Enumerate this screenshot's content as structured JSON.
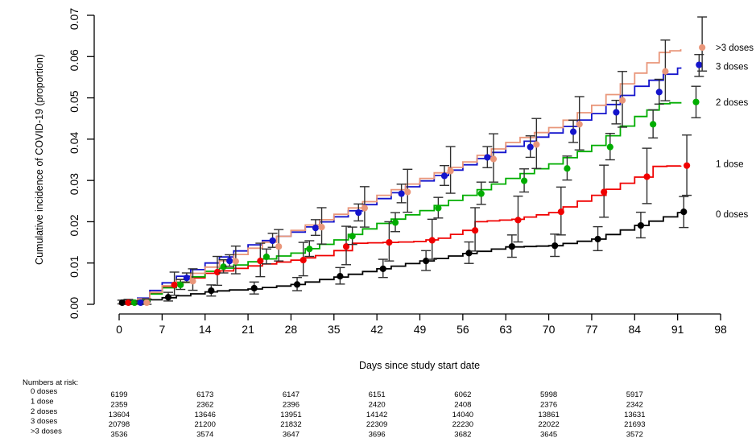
{
  "chart_data": {
    "type": "line",
    "subtype": "kaplan-meier-step-curves-with-weekly-point-estimates",
    "title": "",
    "xlabel": "Days since study start date",
    "ylabel": "Cumulative incidence of COVID-19 (proportion)",
    "xlim": [
      0,
      98
    ],
    "ylim": [
      0,
      0.07
    ],
    "xticks": [
      0,
      7,
      14,
      21,
      28,
      35,
      42,
      49,
      56,
      63,
      70,
      77,
      84,
      91,
      98
    ],
    "yticks": [
      "0.00",
      "0.01",
      "0.02",
      "0.03",
      "0.04",
      "0.05",
      "0.06",
      "0.07"
    ],
    "grid": false,
    "legend_position": "right-outside",
    "error_bar_color": "#2f2f2f",
    "series": [
      {
        "name": "0 doses",
        "color": "#000000",
        "curve": [
          [
            0,
            0
          ],
          [
            3,
            0.0006
          ],
          [
            7,
            0.0016
          ],
          [
            14,
            0.003
          ],
          [
            18,
            0.0035
          ],
          [
            21,
            0.0037
          ],
          [
            28,
            0.0048
          ],
          [
            35,
            0.0066
          ],
          [
            42,
            0.0086
          ],
          [
            49,
            0.0105
          ],
          [
            56,
            0.0123
          ],
          [
            63,
            0.0139
          ],
          [
            66,
            0.014
          ],
          [
            70,
            0.0142
          ],
          [
            77,
            0.0158
          ],
          [
            84,
            0.0191
          ],
          [
            91,
            0.0222
          ],
          [
            91.5,
            0.0224
          ]
        ],
        "markers": [
          [
            0.5,
            0.0004,
            0.0001,
            0.001
          ],
          [
            8,
            0.0017,
            0.0008,
            0.0029
          ],
          [
            15,
            0.0033,
            0.002,
            0.0047
          ],
          [
            22,
            0.0039,
            0.0025,
            0.0054
          ],
          [
            29,
            0.0048,
            0.0033,
            0.0065
          ],
          [
            36,
            0.0068,
            0.0049,
            0.0089
          ],
          [
            43,
            0.0086,
            0.0065,
            0.0109
          ],
          [
            50,
            0.0105,
            0.0082,
            0.013
          ],
          [
            57,
            0.0124,
            0.0099,
            0.0151
          ],
          [
            64,
            0.014,
            0.0114,
            0.0168
          ],
          [
            71,
            0.0142,
            0.0116,
            0.017
          ],
          [
            78,
            0.0158,
            0.013,
            0.0188
          ],
          [
            85,
            0.0191,
            0.0161,
            0.0223
          ],
          [
            92,
            0.0224,
            0.0186,
            0.0261
          ]
        ]
      },
      {
        "name": "1 dose",
        "color": "#F00000",
        "curve": [
          [
            0,
            0
          ],
          [
            3,
            0.0012
          ],
          [
            7,
            0.0042
          ],
          [
            14,
            0.0075
          ],
          [
            21,
            0.0093
          ],
          [
            28,
            0.0107
          ],
          [
            32,
            0.0118
          ],
          [
            35,
            0.013
          ],
          [
            38,
            0.0148
          ],
          [
            48,
            0.0152
          ],
          [
            52,
            0.016
          ],
          [
            56,
            0.0179
          ],
          [
            58,
            0.02
          ],
          [
            64,
            0.0206
          ],
          [
            70,
            0.0222
          ],
          [
            77,
            0.0264
          ],
          [
            84,
            0.0308
          ],
          [
            87,
            0.0334
          ],
          [
            91.5,
            0.0336
          ]
        ],
        "markers": [
          [
            1.5,
            0.0004,
            0.0,
            0.0012
          ],
          [
            9,
            0.0047,
            0.0022,
            0.0078
          ],
          [
            16,
            0.0078,
            0.0046,
            0.0116
          ],
          [
            23,
            0.0105,
            0.0067,
            0.0148
          ],
          [
            30,
            0.0107,
            0.0069,
            0.015
          ],
          [
            37,
            0.014,
            0.0096,
            0.0189
          ],
          [
            44,
            0.015,
            0.0105,
            0.02
          ],
          [
            51,
            0.0155,
            0.0109,
            0.0206
          ],
          [
            58,
            0.0179,
            0.0129,
            0.0234
          ],
          [
            65,
            0.0204,
            0.0151,
            0.0262
          ],
          [
            72,
            0.0224,
            0.0168,
            0.0284
          ],
          [
            79,
            0.0272,
            0.0211,
            0.0337
          ],
          [
            86,
            0.0309,
            0.0244,
            0.0378
          ],
          [
            92.5,
            0.0336,
            0.0264,
            0.041
          ]
        ]
      },
      {
        "name": "2 doses",
        "color": "#00AD00",
        "curve": [
          [
            0,
            0
          ],
          [
            3,
            0.001
          ],
          [
            7,
            0.004
          ],
          [
            14,
            0.008
          ],
          [
            21,
            0.0103
          ],
          [
            28,
            0.0124
          ],
          [
            35,
            0.0156
          ],
          [
            42,
            0.0196
          ],
          [
            49,
            0.0227
          ],
          [
            56,
            0.0264
          ],
          [
            63,
            0.0305
          ],
          [
            70,
            0.034
          ],
          [
            77,
            0.0385
          ],
          [
            84,
            0.0455
          ],
          [
            88,
            0.0486
          ],
          [
            91.5,
            0.049
          ]
        ],
        "markers": [
          [
            2.5,
            0.0004,
            0.0001,
            0.0009
          ],
          [
            10,
            0.0047,
            0.0036,
            0.006
          ],
          [
            17,
            0.0091,
            0.0076,
            0.0108
          ],
          [
            24,
            0.0115,
            0.0098,
            0.0134
          ],
          [
            31,
            0.0134,
            0.0116,
            0.0154
          ],
          [
            38,
            0.0165,
            0.0145,
            0.0187
          ],
          [
            45,
            0.0198,
            0.0176,
            0.0222
          ],
          [
            52,
            0.0233,
            0.0209,
            0.0259
          ],
          [
            59,
            0.0268,
            0.0242,
            0.0296
          ],
          [
            66,
            0.0299,
            0.0272,
            0.0328
          ],
          [
            73,
            0.0329,
            0.0301,
            0.0359
          ],
          [
            80,
            0.0381,
            0.035,
            0.0414
          ],
          [
            87,
            0.0436,
            0.0403,
            0.0471
          ],
          [
            94,
            0.049,
            0.0452,
            0.0528
          ]
        ]
      },
      {
        "name": "3 doses",
        "color": "#1414CC",
        "curve": [
          [
            0,
            0
          ],
          [
            3,
            0.0015
          ],
          [
            7,
            0.0052
          ],
          [
            14,
            0.01
          ],
          [
            21,
            0.0144
          ],
          [
            28,
            0.0175
          ],
          [
            35,
            0.0212
          ],
          [
            42,
            0.0256
          ],
          [
            49,
            0.0299
          ],
          [
            56,
            0.0338
          ],
          [
            63,
            0.0383
          ],
          [
            66,
            0.0395
          ],
          [
            70,
            0.0415
          ],
          [
            77,
            0.0462
          ],
          [
            84,
            0.0528
          ],
          [
            91,
            0.0572
          ],
          [
            91.5,
            0.0574
          ]
        ],
        "markers": [
          [
            3.5,
            0.0004,
            0.0002,
            0.0008
          ],
          [
            11,
            0.0064,
            0.0054,
            0.0076
          ],
          [
            18,
            0.0105,
            0.0092,
            0.012
          ],
          [
            25,
            0.0154,
            0.0138,
            0.0172
          ],
          [
            32,
            0.0185,
            0.0167,
            0.0205
          ],
          [
            39,
            0.0222,
            0.0202,
            0.0243
          ],
          [
            46,
            0.0268,
            0.0246,
            0.0291
          ],
          [
            53,
            0.0311,
            0.0288,
            0.0336
          ],
          [
            60,
            0.0356,
            0.0331,
            0.0382
          ],
          [
            67,
            0.0381,
            0.0356,
            0.0408
          ],
          [
            74,
            0.0418,
            0.0392,
            0.0446
          ],
          [
            81,
            0.0465,
            0.0437,
            0.0494
          ],
          [
            88,
            0.0514,
            0.0485,
            0.0545
          ],
          [
            94.5,
            0.058,
            0.0552,
            0.0605
          ]
        ]
      },
      {
        "name": ">3 doses",
        "color": "#E9967A",
        "curve": [
          [
            0,
            0
          ],
          [
            3,
            0.0013
          ],
          [
            7,
            0.0045
          ],
          [
            14,
            0.009
          ],
          [
            21,
            0.0136
          ],
          [
            28,
            0.0179
          ],
          [
            35,
            0.0218
          ],
          [
            42,
            0.0264
          ],
          [
            49,
            0.0305
          ],
          [
            56,
            0.0345
          ],
          [
            63,
            0.0392
          ],
          [
            70,
            0.0428
          ],
          [
            77,
            0.0482
          ],
          [
            84,
            0.056
          ],
          [
            88,
            0.061
          ],
          [
            91.5,
            0.0618
          ]
        ],
        "markers": [
          [
            4.5,
            0.0004,
            0.0,
            0.0013
          ],
          [
            12,
            0.0056,
            0.0034,
            0.0086
          ],
          [
            19,
            0.0104,
            0.0074,
            0.0141
          ],
          [
            26,
            0.014,
            0.0105,
            0.0181
          ],
          [
            33,
            0.0187,
            0.0146,
            0.0234
          ],
          [
            40,
            0.0233,
            0.0187,
            0.0285
          ],
          [
            47,
            0.0272,
            0.0223,
            0.0327
          ],
          [
            54,
            0.0323,
            0.0269,
            0.0382
          ],
          [
            61,
            0.0352,
            0.0296,
            0.0413
          ],
          [
            68,
            0.0387,
            0.0329,
            0.045
          ],
          [
            75,
            0.0436,
            0.0374,
            0.0503
          ],
          [
            82,
            0.0494,
            0.0429,
            0.0564
          ],
          [
            89,
            0.0564,
            0.0493,
            0.064
          ],
          [
            95,
            0.0622,
            0.0565,
            0.0696
          ]
        ]
      }
    ]
  },
  "legend": {
    "items": [
      {
        "label": ">3 doses",
        "color": "#E9967A",
        "value": 0.0622
      },
      {
        "label": "3 doses",
        "color": "#1414CC",
        "value": 0.0576
      },
      {
        "label": "2 doses",
        "color": "#00AD00",
        "value": 0.0489
      },
      {
        "label": "1 dose",
        "color": "#F00000",
        "value": 0.034
      },
      {
        "label": "0 doses",
        "color": "#000000",
        "value": 0.0218
      }
    ]
  },
  "risk_table": {
    "title": "Numbers at risk:",
    "days": [
      0,
      14,
      28,
      42,
      56,
      70,
      84
    ],
    "rows": [
      {
        "label": "0 doses",
        "color": "#000000",
        "values": [
          6199,
          6173,
          6147,
          6151,
          6062,
          5998,
          5917
        ]
      },
      {
        "label": "1 dose",
        "color": "#F00000",
        "values": [
          2359,
          2362,
          2396,
          2420,
          2408,
          2376,
          2342
        ]
      },
      {
        "label": "2 doses",
        "color": "#00AD00",
        "values": [
          13604,
          13646,
          13951,
          14142,
          14040,
          13861,
          13631
        ]
      },
      {
        "label": "3 doses",
        "color": "#1414CC",
        "values": [
          20798,
          21200,
          21832,
          22309,
          22230,
          22022,
          21693
        ]
      },
      {
        "label": ">3 doses",
        "color": "#E9967A",
        "values": [
          3536,
          3574,
          3647,
          3696,
          3682,
          3645,
          3572
        ]
      }
    ]
  }
}
